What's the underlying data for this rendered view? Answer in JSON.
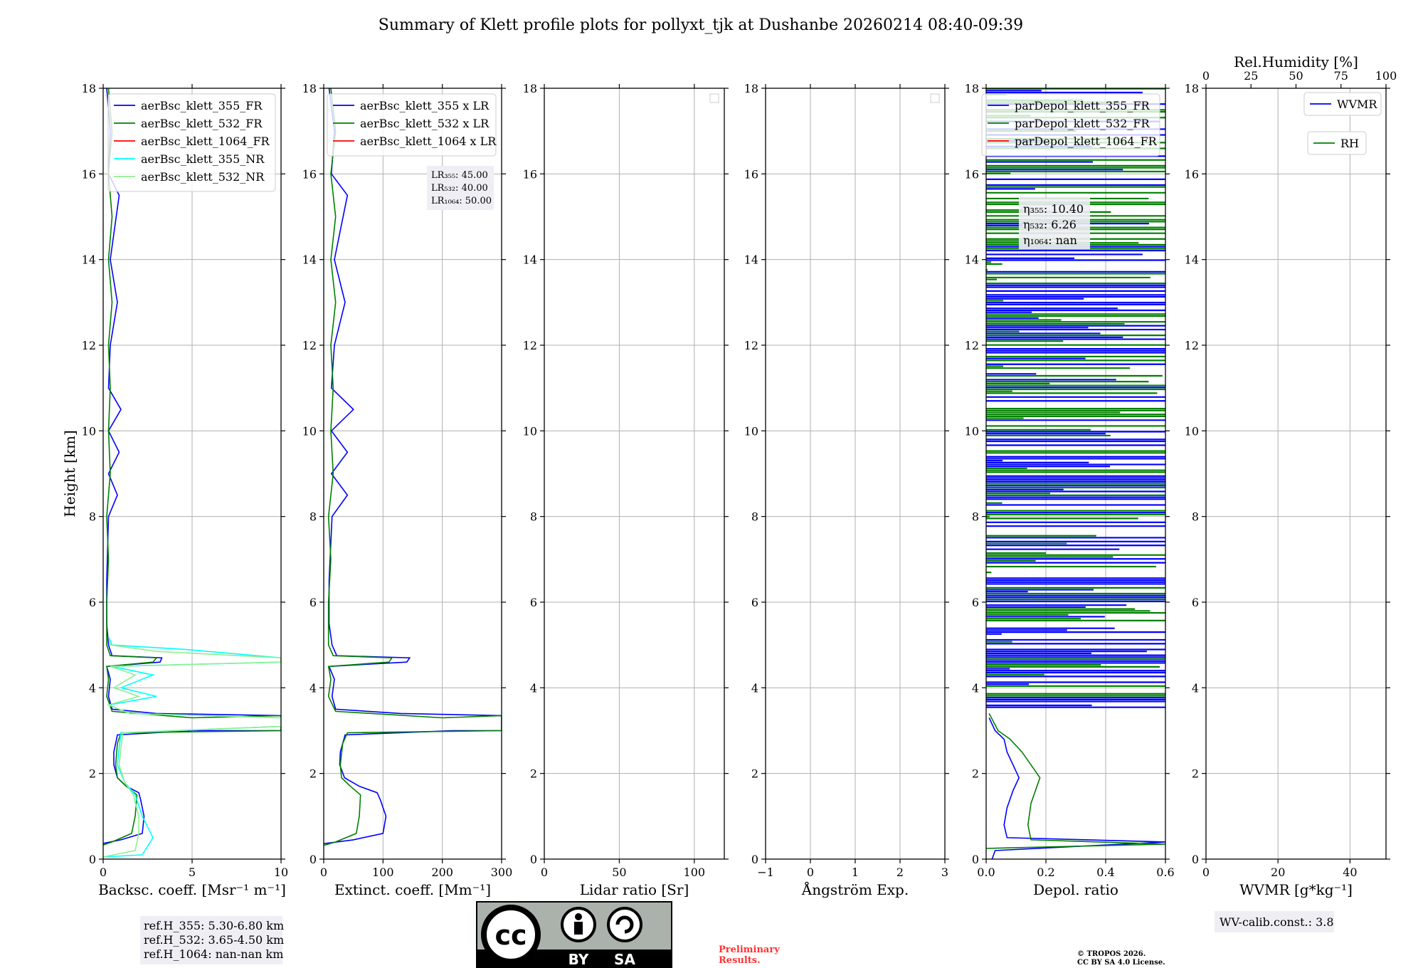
{
  "title": "Summary of Klett profile plots for pollyxt_tjk at Dushanbe 20260214 08:40-09:39",
  "colors": {
    "b355": "#0000ff",
    "g532": "#008000",
    "r1064": "#ff0000",
    "c355nr": "#00ffff",
    "l532nr": "#90ee90"
  },
  "chart_data": [
    {
      "id": "bsc",
      "type": "line",
      "xlabel": "Backsc. coeff. [Msr⁻¹ m⁻¹]",
      "ylabel": "Height [km]",
      "xlim": [
        0,
        10
      ],
      "ylim": [
        0,
        18
      ],
      "xticks": [
        0,
        5,
        10
      ],
      "yticks": [
        0,
        2,
        4,
        6,
        8,
        10,
        12,
        14,
        16,
        18
      ],
      "legend": [
        "aerBsc_klett_355_FR",
        "aerBsc_klett_532_FR",
        "aerBsc_klett_1064_FR",
        "aerBsc_klett_355_NR",
        "aerBsc_klett_532_NR"
      ],
      "series": [
        {
          "name": "aerBsc_klett_355_FR",
          "color": "#0000ff",
          "points": [
            [
              -0.2,
              0.35
            ],
            [
              1.0,
              0.45
            ],
            [
              2.2,
              0.6
            ],
            [
              2.3,
              1.0
            ],
            [
              2.1,
              1.4
            ],
            [
              2.0,
              1.55
            ],
            [
              1.3,
              1.7
            ],
            [
              0.8,
              1.9
            ],
            [
              0.6,
              2.2
            ],
            [
              0.6,
              2.5
            ],
            [
              0.8,
              2.9
            ],
            [
              5.0,
              3.0
            ],
            [
              10,
              3.0
            ],
            [
              10,
              3.35
            ],
            [
              3.0,
              3.4
            ],
            [
              0.5,
              3.5
            ],
            [
              0.3,
              3.8
            ],
            [
              0.4,
              4.2
            ],
            [
              0.2,
              4.5
            ],
            [
              3.2,
              4.6
            ],
            [
              3.3,
              4.7
            ],
            [
              0.5,
              4.75
            ],
            [
              0.3,
              5.0
            ],
            [
              0.2,
              5.5
            ],
            [
              0.2,
              6.5
            ],
            [
              0.3,
              8.0
            ],
            [
              0.8,
              8.5
            ],
            [
              0.3,
              9.0
            ],
            [
              0.9,
              9.5
            ],
            [
              0.3,
              10.0
            ],
            [
              1.0,
              10.5
            ],
            [
              0.3,
              11.0
            ],
            [
              0.4,
              12.0
            ],
            [
              0.8,
              13.0
            ],
            [
              0.4,
              14.0
            ],
            [
              0.9,
              15.5
            ],
            [
              0.3,
              16.0
            ],
            [
              0.4,
              17.0
            ],
            [
              0.2,
              18.0
            ]
          ]
        },
        {
          "name": "aerBsc_klett_532_FR",
          "color": "#008000",
          "points": [
            [
              -0.2,
              0.3
            ],
            [
              0.5,
              0.4
            ],
            [
              1.6,
              0.6
            ],
            [
              1.8,
              1.0
            ],
            [
              1.9,
              1.5
            ],
            [
              1.3,
              1.7
            ],
            [
              0.8,
              1.9
            ],
            [
              0.7,
              2.2
            ],
            [
              0.8,
              2.7
            ],
            [
              1.0,
              2.95
            ],
            [
              10,
              3.0
            ],
            [
              10,
              3.35
            ],
            [
              5.0,
              3.3
            ],
            [
              0.5,
              3.45
            ],
            [
              0.2,
              3.8
            ],
            [
              0.3,
              4.2
            ],
            [
              0.2,
              4.5
            ],
            [
              2.8,
              4.6
            ],
            [
              3.0,
              4.7
            ],
            [
              0.4,
              4.75
            ],
            [
              0.2,
              5.0
            ],
            [
              0.2,
              6.0
            ],
            [
              0.3,
              7.0
            ],
            [
              0.2,
              8.0
            ],
            [
              0.4,
              9.0
            ],
            [
              0.3,
              10.0
            ],
            [
              0.4,
              11.0
            ],
            [
              0.3,
              12.0
            ],
            [
              0.5,
              13.0
            ],
            [
              0.3,
              14.0
            ],
            [
              0.5,
              15.0
            ],
            [
              0.3,
              16.0
            ],
            [
              0.5,
              17.0
            ],
            [
              0.3,
              18.0
            ]
          ]
        },
        {
          "name": "aerBsc_klett_355_NR",
          "color": "#00ffff",
          "points": [
            [
              0.0,
              0.05
            ],
            [
              2.2,
              0.1
            ],
            [
              2.8,
              0.5
            ],
            [
              2.2,
              1.0
            ],
            [
              1.8,
              1.5
            ],
            [
              1.2,
              1.8
            ],
            [
              0.8,
              2.2
            ],
            [
              0.9,
              2.6
            ],
            [
              1.0,
              2.95
            ],
            [
              10,
              3.1
            ],
            [
              10,
              3.3
            ],
            [
              1.5,
              3.4
            ],
            [
              0.3,
              3.6
            ],
            [
              3.0,
              3.8
            ],
            [
              1.0,
              4.0
            ],
            [
              2.8,
              4.3
            ],
            [
              0.5,
              4.5
            ],
            [
              10,
              4.6
            ],
            [
              10,
              4.7
            ],
            [
              4.5,
              4.9
            ],
            [
              0.5,
              5.0
            ],
            [
              0.3,
              5.2
            ]
          ]
        },
        {
          "name": "aerBsc_klett_532_NR",
          "color": "#90ee90",
          "points": [
            [
              0.0,
              0.05
            ],
            [
              1.8,
              0.2
            ],
            [
              2.0,
              0.6
            ],
            [
              2.0,
              1.0
            ],
            [
              1.7,
              1.5
            ],
            [
              1.2,
              1.8
            ],
            [
              0.9,
              2.2
            ],
            [
              1.0,
              2.6
            ],
            [
              1.1,
              2.95
            ],
            [
              10,
              3.1
            ],
            [
              10,
              3.3
            ],
            [
              1.5,
              3.4
            ],
            [
              0.3,
              3.6
            ],
            [
              2.0,
              3.8
            ],
            [
              0.6,
              4.0
            ],
            [
              1.8,
              4.3
            ],
            [
              0.4,
              4.5
            ],
            [
              10,
              4.6
            ],
            [
              10,
              4.7
            ],
            [
              3.0,
              4.85
            ],
            [
              0.4,
              5.0
            ],
            [
              0.3,
              5.2
            ]
          ]
        }
      ],
      "annotation": [
        "ref.H_355: 5.30-6.80 km",
        "ref.H_532: 3.65-4.50 km",
        "ref.H_1064: nan-nan km"
      ]
    },
    {
      "id": "ext",
      "type": "line",
      "xlabel": "Extinct. coeff. [Mm⁻¹]",
      "xlim": [
        0,
        300
      ],
      "ylim": [
        0,
        18
      ],
      "xticks": [
        0,
        100,
        200,
        300
      ],
      "yticks": [
        0,
        2,
        4,
        6,
        8,
        10,
        12,
        14,
        16,
        18
      ],
      "legend": [
        "aerBsc_klett_355 x LR",
        "aerBsc_klett_532 x LR",
        "aerBsc_klett_1064 x LR"
      ],
      "series": [
        {
          "name": "aerBsc_klett_355 x LR",
          "color": "#0000ff",
          "points": [
            [
              -5,
              0.35
            ],
            [
              50,
              0.45
            ],
            [
              100,
              0.6
            ],
            [
              105,
              1.0
            ],
            [
              95,
              1.4
            ],
            [
              90,
              1.55
            ],
            [
              60,
              1.7
            ],
            [
              35,
              1.9
            ],
            [
              27,
              2.2
            ],
            [
              28,
              2.5
            ],
            [
              36,
              2.9
            ],
            [
              220,
              3.0
            ],
            [
              300,
              3.0
            ],
            [
              300,
              3.35
            ],
            [
              130,
              3.4
            ],
            [
              20,
              3.5
            ],
            [
              14,
              3.8
            ],
            [
              18,
              4.2
            ],
            [
              9,
              4.5
            ],
            [
              140,
              4.6
            ],
            [
              145,
              4.7
            ],
            [
              22,
              4.75
            ],
            [
              14,
              5.0
            ],
            [
              9,
              5.5
            ],
            [
              9,
              6.5
            ],
            [
              14,
              8.0
            ],
            [
              40,
              8.5
            ],
            [
              13,
              9.0
            ],
            [
              40,
              9.5
            ],
            [
              13,
              10.0
            ],
            [
              50,
              10.5
            ],
            [
              13,
              11.0
            ],
            [
              18,
              12.0
            ],
            [
              36,
              13.0
            ],
            [
              18,
              14.0
            ],
            [
              40,
              15.5
            ],
            [
              13,
              16.0
            ],
            [
              18,
              17.0
            ],
            [
              9,
              18.0
            ]
          ]
        },
        {
          "name": "aerBsc_klett_532 x LR",
          "color": "#008000",
          "points": [
            [
              -5,
              0.3
            ],
            [
              20,
              0.4
            ],
            [
              55,
              0.6
            ],
            [
              60,
              1.0
            ],
            [
              62,
              1.5
            ],
            [
              45,
              1.7
            ],
            [
              30,
              1.9
            ],
            [
              28,
              2.2
            ],
            [
              32,
              2.7
            ],
            [
              40,
              2.95
            ],
            [
              300,
              3.0
            ],
            [
              300,
              3.35
            ],
            [
              200,
              3.3
            ],
            [
              20,
              3.45
            ],
            [
              8,
              3.8
            ],
            [
              12,
              4.2
            ],
            [
              8,
              4.5
            ],
            [
              110,
              4.6
            ],
            [
              115,
              4.7
            ],
            [
              16,
              4.75
            ],
            [
              8,
              5.0
            ],
            [
              8,
              6.0
            ],
            [
              12,
              7.0
            ],
            [
              8,
              8.0
            ],
            [
              16,
              9.0
            ],
            [
              12,
              10.0
            ],
            [
              16,
              11.0
            ],
            [
              12,
              12.0
            ],
            [
              20,
              13.0
            ],
            [
              12,
              14.0
            ],
            [
              20,
              15.0
            ],
            [
              12,
              16.0
            ],
            [
              20,
              17.0
            ],
            [
              12,
              18.0
            ]
          ]
        }
      ],
      "annotation": [
        "LR₃₅₅: 45.00",
        "LR₅₃₂: 40.00",
        "LR₁₀₆₄: 50.00"
      ]
    },
    {
      "id": "lr",
      "type": "line",
      "xlabel": "Lidar ratio [Sr]",
      "xlim": [
        0,
        120
      ],
      "ylim": [
        0,
        18
      ],
      "xticks": [
        0,
        50,
        100
      ],
      "yticks": [
        0,
        2,
        4,
        6,
        8,
        10,
        12,
        14,
        16,
        18
      ],
      "series": []
    },
    {
      "id": "ang",
      "type": "line",
      "xlabel": "Ångström Exp.",
      "xlim": [
        -1,
        3
      ],
      "ylim": [
        0,
        18
      ],
      "xticks": [
        -1,
        0,
        1,
        2,
        3
      ],
      "yticks": [
        0,
        2,
        4,
        6,
        8,
        10,
        12,
        14,
        16,
        18
      ],
      "series": []
    },
    {
      "id": "depol",
      "type": "line",
      "xlabel": "Depol. ratio",
      "xlim": [
        0.0,
        0.6
      ],
      "ylim": [
        0,
        18
      ],
      "xticks": [
        0.0,
        0.2,
        0.4,
        0.6
      ],
      "yticks": [
        0,
        2,
        4,
        6,
        8,
        10,
        12,
        14,
        16,
        18
      ],
      "legend": [
        "parDepol_klett_355_FR",
        "parDepol_klett_532_FR",
        "parDepol_klett_1064_FR"
      ],
      "series": [
        {
          "name": "parDepol_klett_355_FR",
          "color": "#0000ff",
          "points": [
            [
              0.02,
              0.0
            ],
            [
              0.03,
              0.2
            ],
            [
              0.6,
              0.4
            ],
            [
              0.07,
              0.5
            ],
            [
              0.06,
              0.8
            ],
            [
              0.07,
              1.2
            ],
            [
              0.09,
              1.6
            ],
            [
              0.11,
              1.9
            ],
            [
              0.09,
              2.2
            ],
            [
              0.07,
              2.5
            ],
            [
              0.06,
              2.8
            ],
            [
              0.03,
              3.0
            ],
            [
              0.01,
              3.3
            ]
          ]
        },
        {
          "name": "parDepol_klett_532_FR",
          "color": "#008000",
          "points": [
            [
              0.0,
              0.25
            ],
            [
              0.6,
              0.35
            ],
            [
              0.15,
              0.45
            ],
            [
              0.14,
              0.8
            ],
            [
              0.15,
              1.3
            ],
            [
              0.17,
              1.7
            ],
            [
              0.18,
              1.9
            ],
            [
              0.15,
              2.2
            ],
            [
              0.12,
              2.5
            ],
            [
              0.08,
              2.8
            ],
            [
              0.04,
              3.0
            ],
            [
              0.01,
              3.4
            ]
          ]
        }
      ],
      "noise_range_km": [
        3.5,
        18
      ],
      "annotation": [
        "η₃₅₅: 10.40",
        "η₅₃₂: 6.26",
        "η₁₀₆₄: nan"
      ]
    },
    {
      "id": "wv",
      "type": "line",
      "xlabel": "WVMR [g*kg⁻¹]",
      "top_xlabel": "Rel.Humidity [%]",
      "xlim": [
        0,
        50
      ],
      "ylim": [
        0,
        18
      ],
      "xticks": [
        0,
        20,
        40
      ],
      "top_xticks": [
        0,
        25,
        50,
        75,
        100
      ],
      "yticks": [
        0,
        2,
        4,
        6,
        8,
        10,
        12,
        14,
        16,
        18
      ],
      "legend": [
        "WVMR",
        "RH"
      ],
      "series": [],
      "annotation": [
        "WV-calib.const.: 3.8"
      ]
    }
  ],
  "footer": {
    "cc_labels": [
      "BY",
      "SA"
    ],
    "cc_mark": "cc",
    "preliminary": [
      "Preliminary",
      "Results."
    ],
    "copyright": [
      "© TROPOS 2026.",
      "CC BY SA 4.0 License."
    ]
  }
}
